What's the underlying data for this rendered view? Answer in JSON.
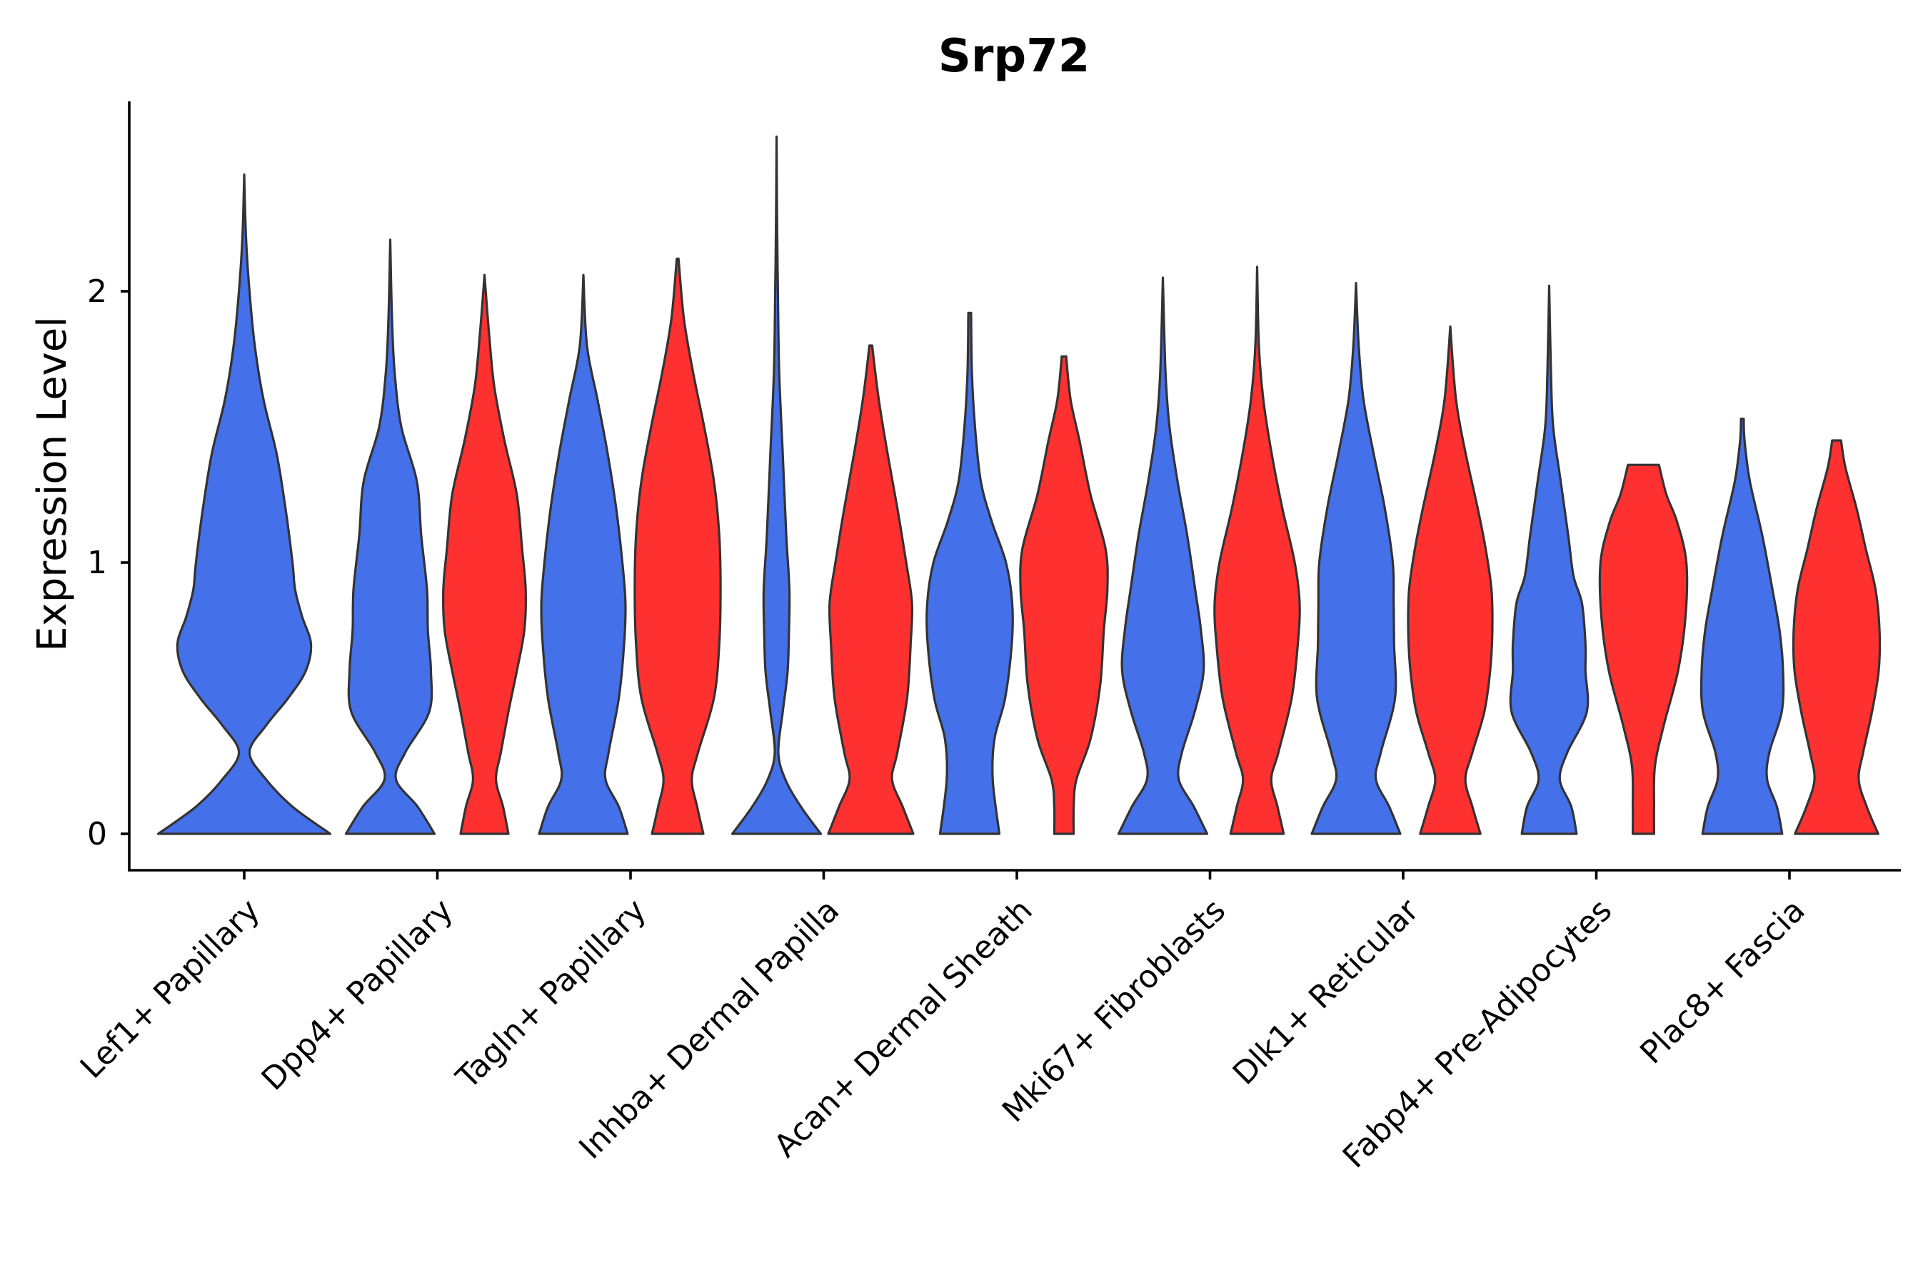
{
  "chart_data": {
    "type": "violin",
    "title": "Srp72",
    "xlabel": "",
    "ylabel": "Expression Level",
    "ylim": [
      -0.13,
      2.7
    ],
    "yticks": [
      0,
      1,
      2
    ],
    "categories": [
      "Lef1+ Papillary",
      "Dpp4+ Papillary",
      "Tagln+ Papillary",
      "Inhba+ Dermal Papilla",
      "Acan+ Dermal Sheath",
      "Mki67+ Fibroblasts",
      "Dlk1+ Reticular",
      "Fabp4+ Pre-Adipocytes",
      "Plac8+ Fascia"
    ],
    "colors": {
      "group_1": "#4470EA",
      "group_2": "#FF3030",
      "outline": "#333333"
    },
    "series": [
      {
        "name": "group_1",
        "color": "#4470EA",
        "violins": [
          {
            "category": "Lef1+ Papillary",
            "max": 2.43,
            "profile": [
              [
                0,
                0.98
              ],
              [
                0.1,
                0.55
              ],
              [
                0.2,
                0.25
              ],
              [
                0.3,
                0.06
              ],
              [
                0.4,
                0.25
              ],
              [
                0.5,
                0.5
              ],
              [
                0.6,
                0.7
              ],
              [
                0.7,
                0.76
              ],
              [
                0.8,
                0.66
              ],
              [
                0.9,
                0.58
              ],
              [
                1.0,
                0.55
              ],
              [
                1.2,
                0.47
              ],
              [
                1.4,
                0.37
              ],
              [
                1.6,
                0.22
              ],
              [
                1.8,
                0.12
              ],
              [
                2.0,
                0.06
              ],
              [
                2.2,
                0.02
              ],
              [
                2.43,
                0.0
              ]
            ]
          },
          {
            "category": "Dpp4+ Papillary",
            "max": 2.19,
            "profile": [
              [
                0,
                1.0
              ],
              [
                0.1,
                0.62
              ],
              [
                0.2,
                0.13
              ],
              [
                0.3,
                0.34
              ],
              [
                0.45,
                0.88
              ],
              [
                0.6,
                0.92
              ],
              [
                0.75,
                0.85
              ],
              [
                0.9,
                0.83
              ],
              [
                1.1,
                0.7
              ],
              [
                1.3,
                0.6
              ],
              [
                1.5,
                0.25
              ],
              [
                1.7,
                0.1
              ],
              [
                1.9,
                0.04
              ],
              [
                2.19,
                0.0
              ]
            ]
          },
          {
            "category": "Tagln+ Papillary",
            "max": 2.06,
            "profile": [
              [
                0,
                1.0
              ],
              [
                0.1,
                0.8
              ],
              [
                0.2,
                0.5
              ],
              [
                0.3,
                0.57
              ],
              [
                0.5,
                0.8
              ],
              [
                0.7,
                0.92
              ],
              [
                0.85,
                0.95
              ],
              [
                1.0,
                0.88
              ],
              [
                1.2,
                0.74
              ],
              [
                1.4,
                0.55
              ],
              [
                1.6,
                0.32
              ],
              [
                1.8,
                0.08
              ],
              [
                2.06,
                0.0
              ]
            ]
          },
          {
            "category": "Inhba+ Dermal Papilla",
            "max": 2.57,
            "profile": [
              [
                0,
                1.0
              ],
              [
                0.1,
                0.55
              ],
              [
                0.2,
                0.2
              ],
              [
                0.3,
                0.04
              ],
              [
                0.45,
                0.14
              ],
              [
                0.6,
                0.25
              ],
              [
                0.75,
                0.28
              ],
              [
                0.9,
                0.29
              ],
              [
                1.1,
                0.22
              ],
              [
                1.4,
                0.14
              ],
              [
                1.7,
                0.06
              ],
              [
                2.0,
                0.03
              ],
              [
                2.3,
                0.01
              ],
              [
                2.57,
                0.0
              ]
            ]
          },
          {
            "category": "Acan+ Dermal Sheath",
            "max": 1.92,
            "profile": [
              [
                0,
                0.67
              ],
              [
                0.2,
                0.52
              ],
              [
                0.35,
                0.56
              ],
              [
                0.5,
                0.8
              ],
              [
                0.7,
                0.95
              ],
              [
                0.85,
                0.96
              ],
              [
                1.0,
                0.82
              ],
              [
                1.15,
                0.5
              ],
              [
                1.3,
                0.25
              ],
              [
                1.5,
                0.12
              ],
              [
                1.7,
                0.05
              ],
              [
                1.92,
                0.03
              ]
            ]
          },
          {
            "category": "Mki67+ Fibroblasts",
            "max": 2.05,
            "profile": [
              [
                0,
                1.0
              ],
              [
                0.1,
                0.7
              ],
              [
                0.2,
                0.36
              ],
              [
                0.3,
                0.43
              ],
              [
                0.45,
                0.72
              ],
              [
                0.6,
                0.92
              ],
              [
                0.75,
                0.86
              ],
              [
                0.9,
                0.73
              ],
              [
                1.1,
                0.55
              ],
              [
                1.3,
                0.33
              ],
              [
                1.5,
                0.15
              ],
              [
                1.7,
                0.06
              ],
              [
                2.05,
                0.0
              ]
            ]
          },
          {
            "category": "Dlk1+ Reticular",
            "max": 2.03,
            "profile": [
              [
                0,
                1.0
              ],
              [
                0.1,
                0.75
              ],
              [
                0.2,
                0.45
              ],
              [
                0.3,
                0.56
              ],
              [
                0.5,
                0.88
              ],
              [
                0.7,
                0.86
              ],
              [
                0.85,
                0.85
              ],
              [
                1.0,
                0.83
              ],
              [
                1.2,
                0.65
              ],
              [
                1.4,
                0.4
              ],
              [
                1.6,
                0.17
              ],
              [
                1.8,
                0.06
              ],
              [
                2.03,
                0.0
              ]
            ]
          },
          {
            "category": "Fabp4+ Pre-Adipocytes",
            "max": 2.02,
            "profile": [
              [
                0,
                0.62
              ],
              [
                0.1,
                0.5
              ],
              [
                0.2,
                0.24
              ],
              [
                0.3,
                0.41
              ],
              [
                0.45,
                0.85
              ],
              [
                0.6,
                0.82
              ],
              [
                0.7,
                0.82
              ],
              [
                0.85,
                0.74
              ],
              [
                0.95,
                0.55
              ],
              [
                1.1,
                0.43
              ],
              [
                1.3,
                0.26
              ],
              [
                1.5,
                0.09
              ],
              [
                1.7,
                0.04
              ],
              [
                2.02,
                0.0
              ]
            ]
          },
          {
            "category": "Plac8+ Fascia",
            "max": 1.53,
            "profile": [
              [
                0,
                0.9
              ],
              [
                0.1,
                0.78
              ],
              [
                0.2,
                0.56
              ],
              [
                0.3,
                0.61
              ],
              [
                0.45,
                0.89
              ],
              [
                0.6,
                0.92
              ],
              [
                0.75,
                0.84
              ],
              [
                0.9,
                0.68
              ],
              [
                1.1,
                0.45
              ],
              [
                1.3,
                0.17
              ],
              [
                1.45,
                0.05
              ],
              [
                1.53,
                0.03
              ]
            ]
          }
        ]
      },
      {
        "name": "group_2",
        "color": "#FF3030",
        "violins": [
          {
            "category": "Dpp4+ Papillary",
            "max": 2.06,
            "profile": [
              [
                0,
                0.54
              ],
              [
                0.1,
                0.42
              ],
              [
                0.2,
                0.26
              ],
              [
                0.3,
                0.37
              ],
              [
                0.45,
                0.54
              ],
              [
                0.6,
                0.73
              ],
              [
                0.75,
                0.9
              ],
              [
                0.9,
                0.93
              ],
              [
                1.05,
                0.85
              ],
              [
                1.25,
                0.73
              ],
              [
                1.45,
                0.45
              ],
              [
                1.65,
                0.22
              ],
              [
                1.85,
                0.1
              ],
              [
                2.06,
                0.0
              ]
            ]
          },
          {
            "category": "Tagln+ Papillary",
            "max": 2.12,
            "profile": [
              [
                0,
                0.58
              ],
              [
                0.1,
                0.44
              ],
              [
                0.2,
                0.32
              ],
              [
                0.3,
                0.46
              ],
              [
                0.5,
                0.82
              ],
              [
                0.7,
                0.94
              ],
              [
                0.9,
                0.97
              ],
              [
                1.1,
                0.94
              ],
              [
                1.3,
                0.82
              ],
              [
                1.5,
                0.6
              ],
              [
                1.7,
                0.35
              ],
              [
                1.9,
                0.14
              ],
              [
                2.12,
                0.02
              ]
            ]
          },
          {
            "category": "Inhba+ Dermal Papilla",
            "max": 1.8,
            "profile": [
              [
                0,
                0.96
              ],
              [
                0.1,
                0.72
              ],
              [
                0.2,
                0.48
              ],
              [
                0.3,
                0.6
              ],
              [
                0.5,
                0.82
              ],
              [
                0.7,
                0.9
              ],
              [
                0.85,
                0.93
              ],
              [
                1.0,
                0.8
              ],
              [
                1.2,
                0.6
              ],
              [
                1.4,
                0.38
              ],
              [
                1.6,
                0.18
              ],
              [
                1.8,
                0.03
              ]
            ]
          },
          {
            "category": "Acan+ Dermal Sheath",
            "max": 1.76,
            "profile": [
              [
                0,
                0.22
              ],
              [
                0.1,
                0.22
              ],
              [
                0.2,
                0.28
              ],
              [
                0.35,
                0.6
              ],
              [
                0.55,
                0.82
              ],
              [
                0.75,
                0.9
              ],
              [
                0.9,
                0.98
              ],
              [
                1.05,
                0.94
              ],
              [
                1.25,
                0.6
              ],
              [
                1.45,
                0.35
              ],
              [
                1.6,
                0.15
              ],
              [
                1.76,
                0.05
              ]
            ]
          },
          {
            "category": "Mki67+ Fibroblasts",
            "max": 2.09,
            "profile": [
              [
                0,
                0.6
              ],
              [
                0.1,
                0.46
              ],
              [
                0.2,
                0.32
              ],
              [
                0.3,
                0.48
              ],
              [
                0.5,
                0.78
              ],
              [
                0.7,
                0.92
              ],
              [
                0.85,
                0.96
              ],
              [
                1.0,
                0.85
              ],
              [
                1.2,
                0.57
              ],
              [
                1.4,
                0.33
              ],
              [
                1.6,
                0.14
              ],
              [
                1.8,
                0.04
              ],
              [
                2.09,
                0.0
              ]
            ]
          },
          {
            "category": "Dlk1+ Reticular",
            "max": 1.87,
            "profile": [
              [
                0,
                0.68
              ],
              [
                0.1,
                0.5
              ],
              [
                0.2,
                0.34
              ],
              [
                0.3,
                0.5
              ],
              [
                0.45,
                0.77
              ],
              [
                0.6,
                0.9
              ],
              [
                0.75,
                0.95
              ],
              [
                0.9,
                0.93
              ],
              [
                1.05,
                0.8
              ],
              [
                1.2,
                0.62
              ],
              [
                1.4,
                0.35
              ],
              [
                1.6,
                0.13
              ],
              [
                1.87,
                0.0
              ]
            ]
          },
          {
            "category": "Fabp4+ Pre-Adipocytes",
            "max": 1.36,
            "profile": [
              [
                0,
                0.24
              ],
              [
                0.1,
                0.24
              ],
              [
                0.25,
                0.26
              ],
              [
                0.4,
                0.46
              ],
              [
                0.6,
                0.78
              ],
              [
                0.8,
                0.95
              ],
              [
                1.0,
                0.97
              ],
              [
                1.15,
                0.76
              ],
              [
                1.25,
                0.52
              ],
              [
                1.36,
                0.35
              ]
            ]
          },
          {
            "category": "Plac8+ Fascia",
            "max": 1.45,
            "profile": [
              [
                0,
                0.94
              ],
              [
                0.1,
                0.68
              ],
              [
                0.2,
                0.5
              ],
              [
                0.3,
                0.6
              ],
              [
                0.45,
                0.8
              ],
              [
                0.6,
                0.95
              ],
              [
                0.75,
                0.97
              ],
              [
                0.9,
                0.88
              ],
              [
                1.05,
                0.66
              ],
              [
                1.2,
                0.45
              ],
              [
                1.35,
                0.2
              ],
              [
                1.45,
                0.1
              ]
            ]
          }
        ]
      }
    ]
  }
}
